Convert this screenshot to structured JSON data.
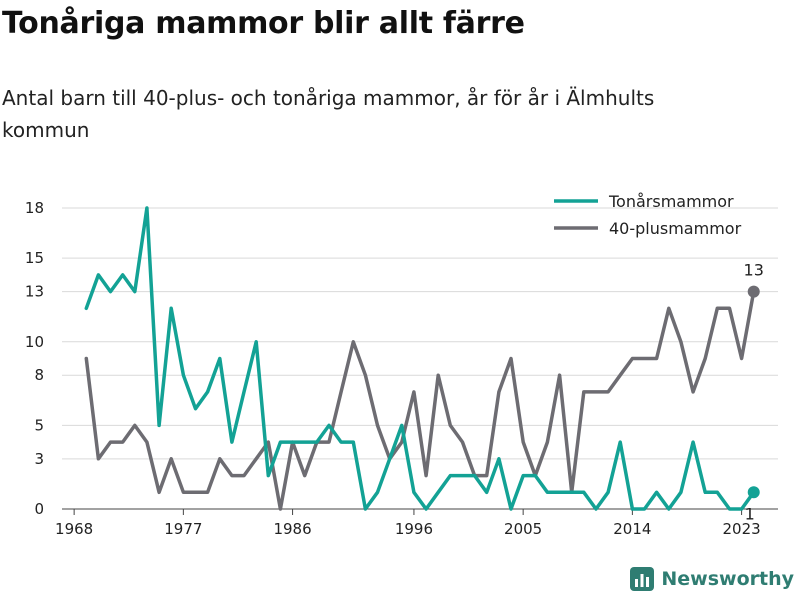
{
  "title": "Tonåriga mammor blir allt färre",
  "subtitle": "Antal barn till 40-plus- och tonåriga mammor, år för år i Älmhults kommun",
  "brand": "Newsworthy",
  "chart_data": {
    "type": "line",
    "x_ticks": [
      "1968",
      "1977",
      "1986",
      "1996",
      "2005",
      "2014",
      "2023"
    ],
    "y_ticks": [
      "0",
      "3",
      "5",
      "8",
      "10",
      "13",
      "15",
      "18"
    ],
    "ylim": [
      0,
      18
    ],
    "xlim": [
      1967,
      2026
    ],
    "grid": true,
    "legend_position": "top-right",
    "x": [
      1969,
      1970,
      1971,
      1972,
      1973,
      1974,
      1975,
      1976,
      1977,
      1978,
      1979,
      1980,
      1981,
      1982,
      1983,
      1984,
      1985,
      1986,
      1987,
      1988,
      1989,
      1990,
      1991,
      1992,
      1993,
      1994,
      1995,
      1996,
      1997,
      1998,
      1999,
      2000,
      2001,
      2002,
      2003,
      2004,
      2005,
      2006,
      2007,
      2008,
      2009,
      2010,
      2011,
      2012,
      2013,
      2014,
      2015,
      2016,
      2017,
      2018,
      2019,
      2020,
      2021,
      2022,
      2023,
      2024
    ],
    "series": [
      {
        "name": "Tonårsmammor",
        "color": "#13a295",
        "values": [
          12,
          14,
          13,
          14,
          13,
          18,
          5,
          12,
          8,
          6,
          7,
          9,
          4,
          7,
          10,
          2,
          4,
          4,
          4,
          4,
          5,
          4,
          4,
          0,
          1,
          3,
          5,
          1,
          0,
          1,
          2,
          2,
          2,
          1,
          3,
          0,
          2,
          2,
          1,
          1,
          1,
          1,
          0,
          1,
          4,
          0,
          0,
          1,
          0,
          1,
          4,
          1,
          1,
          0,
          0,
          1
        ]
      },
      {
        "name": "40-plusmammor",
        "color": "#6d6c72",
        "values": [
          9,
          3,
          4,
          4,
          5,
          4,
          1,
          3,
          1,
          1,
          1,
          3,
          2,
          2,
          3,
          4,
          0,
          4,
          2,
          4,
          4,
          7,
          10,
          8,
          5,
          3,
          4,
          7,
          2,
          8,
          5,
          4,
          2,
          2,
          7,
          9,
          4,
          2,
          4,
          8,
          1,
          7,
          7,
          7,
          8,
          9,
          9,
          9,
          12,
          10,
          7,
          9,
          12,
          12,
          9,
          13
        ]
      }
    ],
    "end_labels": [
      {
        "series": "40-plusmammor",
        "text": "13"
      },
      {
        "series": "Tonårsmammor",
        "text": "1"
      }
    ]
  }
}
